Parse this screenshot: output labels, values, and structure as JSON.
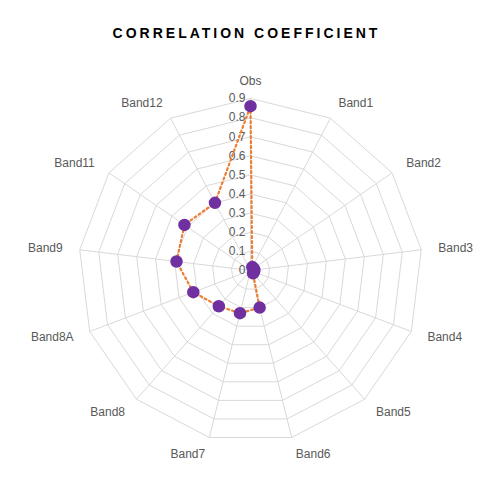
{
  "chart_data": {
    "type": "radar",
    "title": "CORRELATION COEFFICIENT",
    "categories": [
      "Obs",
      "Band1",
      "Band2",
      "Band3",
      "Band4",
      "Band5",
      "Band6",
      "Band7",
      "Band8",
      "Band8A",
      "Band9",
      "Band11",
      "Band12"
    ],
    "values": [
      0.86,
      0.02,
      0.02,
      0.02,
      0.02,
      0.02,
      0.2,
      0.23,
      0.25,
      0.32,
      0.39,
      0.42,
      0.4
    ],
    "color": "#7030a0",
    "marker": "circle",
    "line_style": "dotted",
    "ylim": [
      0,
      0.9
    ],
    "yticks": [
      0,
      0.1,
      0.2,
      0.3,
      0.4,
      0.5,
      0.6,
      0.7,
      0.8,
      0.9
    ],
    "grid": true
  }
}
